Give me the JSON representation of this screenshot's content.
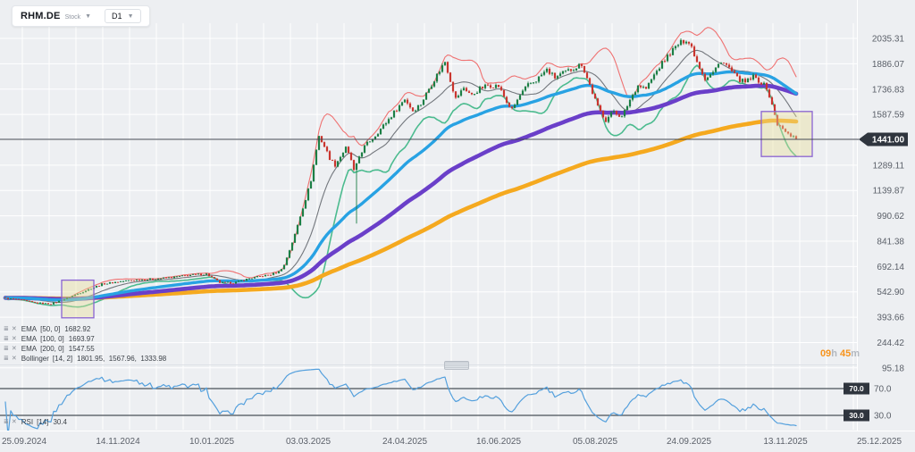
{
  "toolbar": {
    "symbol": "RHM.DE",
    "instrument_type": "Stock",
    "timeframe": "D1",
    "caret": "▼"
  },
  "legend": {
    "settings_icon": "≣",
    "close_icon": "✕",
    "rows": [
      {
        "name": "EMA",
        "params": "[50, 0]",
        "value": "1682.92"
      },
      {
        "name": "EMA",
        "params": "[100, 0]",
        "value": "1693.97"
      },
      {
        "name": "EMA",
        "params": "[200, 0]",
        "value": "1547.55"
      },
      {
        "name": "Bollinger",
        "params": "[14, 2]",
        "value": "1801.95,  1567.96,  1333.98"
      }
    ],
    "rsi_row": {
      "name": "RSI",
      "params": "[14]",
      "value": "30.4"
    }
  },
  "countdown": {
    "hours": "09",
    "hours_unit": "h ",
    "minutes": "45",
    "minutes_unit": "m"
  },
  "price_tag": "1441.00",
  "rsi_tags": {
    "upper": "70.0",
    "lower": "30.0"
  },
  "colors": {
    "background": "#edeff2",
    "grid": "#ffffff",
    "axis_text": "#5b6069",
    "up": "#1c7e45",
    "down": "#c9352e",
    "ema50": "#28a2e3",
    "ema100": "#6a3fc9",
    "ema200": "#f5a91f",
    "bb_upper": "#ef7272",
    "bb_mid": "#73777d",
    "bb_lower": "#4cbb8f",
    "rsi": "#54a0dd",
    "rsi_level": "#4a5057",
    "price_line": "#3d434e",
    "tag_bg": "#2f353e",
    "box_border": "#8a63d2",
    "box_fill": "rgba(233,223,150,0.4)",
    "countdown_accent": "#f7941d"
  },
  "chart_data": {
    "type": "candlestick",
    "title": "RHM.DE daily chart with EMA(50), EMA(100), EMA(200), Bollinger(14,2) and RSI(14)",
    "current_price": 1441.0,
    "price_axis_labels": [
      2035.31,
      1886.07,
      1736.83,
      1587.59,
      1289.11,
      1139.87,
      990.62,
      841.38,
      692.14,
      542.9,
      393.66,
      244.42,
      95.18
    ],
    "price_grid": {
      "min": 95.18,
      "step": 149.24,
      "lines": 14,
      "hidden_label_level": 1438.34
    },
    "date_axis_labels": [
      "25.09.2024",
      "14.11.2024",
      "10.01.2025",
      "03.03.2025",
      "24.04.2025",
      "16.06.2025",
      "05.08.2025",
      "24.09.2025",
      "13.11.2025",
      "25.12.2025"
    ],
    "date_tick_bars": [
      7,
      42,
      77,
      113,
      149,
      184,
      220,
      255,
      291,
      326
    ],
    "bar_count": 296,
    "close_anchors": [
      [
        0,
        505
      ],
      [
        5,
        498
      ],
      [
        11,
        478
      ],
      [
        17,
        472
      ],
      [
        22,
        500
      ],
      [
        27,
        532
      ],
      [
        31,
        558
      ],
      [
        36,
        588
      ],
      [
        42,
        603
      ],
      [
        48,
        612
      ],
      [
        55,
        618
      ],
      [
        62,
        628
      ],
      [
        69,
        642
      ],
      [
        75,
        648
      ],
      [
        80,
        598
      ],
      [
        85,
        596
      ],
      [
        90,
        618
      ],
      [
        95,
        634
      ],
      [
        99,
        645
      ],
      [
        102,
        662
      ],
      [
        104,
        700
      ],
      [
        106,
        790
      ],
      [
        108,
        880
      ],
      [
        110,
        990
      ],
      [
        112,
        1090
      ],
      [
        114,
        1200
      ],
      [
        116,
        1380
      ],
      [
        117,
        1460
      ],
      [
        119,
        1400
      ],
      [
        121,
        1330
      ],
      [
        123,
        1290
      ],
      [
        125,
        1340
      ],
      [
        127,
        1390
      ],
      [
        129,
        1320
      ],
      [
        130,
        1255
      ],
      [
        131,
        1290
      ],
      [
        132,
        1340
      ],
      [
        134,
        1400
      ],
      [
        138,
        1465
      ],
      [
        142,
        1540
      ],
      [
        146,
        1620
      ],
      [
        149,
        1680
      ],
      [
        152,
        1610
      ],
      [
        155,
        1650
      ],
      [
        158,
        1740
      ],
      [
        161,
        1820
      ],
      [
        164,
        1900
      ],
      [
        166,
        1790
      ],
      [
        168,
        1680
      ],
      [
        171,
        1745
      ],
      [
        174,
        1700
      ],
      [
        177,
        1740
      ],
      [
        180,
        1760
      ],
      [
        184,
        1755
      ],
      [
        187,
        1660
      ],
      [
        189,
        1615
      ],
      [
        192,
        1700
      ],
      [
        195,
        1760
      ],
      [
        198,
        1790
      ],
      [
        202,
        1850
      ],
      [
        205,
        1805
      ],
      [
        208,
        1830
      ],
      [
        212,
        1860
      ],
      [
        215,
        1885
      ],
      [
        218,
        1760
      ],
      [
        221,
        1630
      ],
      [
        224,
        1555
      ],
      [
        227,
        1610
      ],
      [
        230,
        1570
      ],
      [
        233,
        1675
      ],
      [
        236,
        1760
      ],
      [
        239,
        1740
      ],
      [
        242,
        1820
      ],
      [
        245,
        1890
      ],
      [
        248,
        1950
      ],
      [
        251,
        2000
      ],
      [
        254,
        2030
      ],
      [
        256,
        1985
      ],
      [
        258,
        1900
      ],
      [
        261,
        1800
      ],
      [
        264,
        1835
      ],
      [
        267,
        1905
      ],
      [
        270,
        1860
      ],
      [
        273,
        1800
      ],
      [
        276,
        1775
      ],
      [
        279,
        1810
      ],
      [
        282,
        1775
      ],
      [
        284,
        1745
      ],
      [
        286,
        1640
      ],
      [
        288,
        1530
      ],
      [
        290,
        1500
      ],
      [
        292,
        1470
      ],
      [
        294,
        1460
      ],
      [
        295,
        1441
      ]
    ],
    "crash_bar": {
      "index": 131,
      "low": 945
    },
    "indicators": {
      "ema": [
        {
          "period": 50,
          "last": 1682.92
        },
        {
          "period": 100,
          "last": 1693.97
        },
        {
          "period": 200,
          "last": 1547.55
        }
      ],
      "bollinger": {
        "period": 14,
        "stddev": 2,
        "upper": 1801.95,
        "middle": 1567.96,
        "lower": 1333.98
      },
      "rsi": {
        "period": 14,
        "last": 30.4,
        "levels": [
          70,
          30
        ]
      }
    },
    "annotations": {
      "boxes": [
        {
          "from_bar": 21,
          "to_bar": 33,
          "top_price": 612,
          "bottom_price": 390
        },
        {
          "from_bar": 282,
          "to_bar": 301,
          "top_price": 1605,
          "bottom_price": 1340
        }
      ]
    }
  }
}
